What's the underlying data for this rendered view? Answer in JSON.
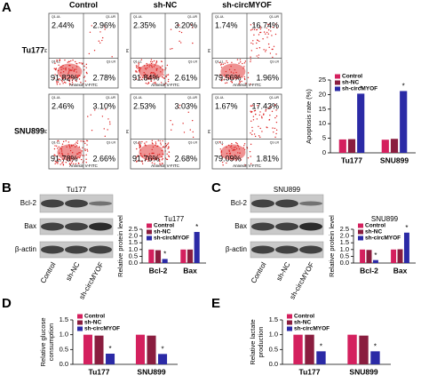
{
  "panel_labels": [
    "A",
    "B",
    "C",
    "D",
    "E"
  ],
  "flow": {
    "columns": [
      "Control",
      "sh-NC",
      "sh-circMYOF"
    ],
    "x_label": "Annexin V-FITC",
    "y_label": "PI",
    "quadrant_labels": [
      "Q1-UL",
      "Q1-UR",
      "Q1-LL",
      "Q1-LR"
    ],
    "rows": [
      {
        "name": "Tu177",
        "plots": [
          {
            "ul": "2.44%",
            "ur": "2.96%",
            "ll": "91.82%",
            "lr": "2.78%"
          },
          {
            "ul": "2.35%",
            "ur": "3.20%",
            "ll": "91.84%",
            "lr": "2.61%"
          },
          {
            "ul": "1.74%",
            "ur": "16.74%",
            "ll": "79.56%",
            "lr": "1.96%"
          }
        ]
      },
      {
        "name": "SNU899",
        "plots": [
          {
            "ul": "2.46%",
            "ur": "3.10%",
            "ll": "91.78%",
            "lr": "2.66%"
          },
          {
            "ul": "2.53%",
            "ur": "3.03%",
            "ll": "91.76%",
            "lr": "2.68%"
          },
          {
            "ul": "1.67%",
            "ur": "17.43%",
            "ll": "79.09%",
            "lr": "1.81%"
          }
        ]
      }
    ]
  },
  "blots": [
    {
      "title": "Tu177",
      "proteins": [
        "Bcl-2",
        "Bax",
        "β-actin"
      ],
      "lanes": [
        "Control",
        "sh-NC",
        "sh-circMYOF"
      ]
    },
    {
      "title": "SNU899",
      "proteins": [
        "Bcl-2",
        "Bax",
        "β-actin"
      ],
      "lanes": [
        "Control",
        "sh-NC",
        "sh-circMYOF"
      ]
    }
  ],
  "chart_data": [
    {
      "type": "bar",
      "y_label": "Apoptosis rate (%)",
      "categories": [
        "Tu177",
        "SNU899"
      ],
      "series": [
        {
          "name": "Control",
          "color": "#d4205e",
          "values": [
            4.6,
            4.5
          ]
        },
        {
          "name": "sh-NC",
          "color": "#8a1d3f",
          "values": [
            4.7,
            4.8
          ]
        },
        {
          "name": "sh-circMYOF",
          "color": "#2b2aa6",
          "values": [
            20.3,
            21.2
          ]
        }
      ],
      "ylim": [
        0,
        25
      ],
      "yticks": [
        0,
        5,
        10,
        15,
        20,
        25
      ],
      "significance": [
        "*",
        "*"
      ],
      "legend": "upper-left"
    },
    {
      "type": "bar",
      "title": "Tu177",
      "y_label": "Relative protein level",
      "categories": [
        "Bcl-2",
        "Bax"
      ],
      "series": [
        {
          "name": "Control",
          "color": "#d4205e",
          "values": [
            1.0,
            1.0
          ]
        },
        {
          "name": "sh-NC",
          "color": "#8a1d3f",
          "values": [
            0.95,
            1.0
          ]
        },
        {
          "name": "sh-circMYOF",
          "color": "#2b2aa6",
          "values": [
            0.3,
            2.3
          ]
        }
      ],
      "ylim": [
        0,
        2.5
      ],
      "yticks": [
        {
          "value": 0,
          "label": "0.0"
        },
        0.5,
        {
          "value": 1,
          "label": "1.0"
        },
        1.5,
        {
          "value": 2,
          "label": "2.0"
        },
        2.5
      ],
      "significance": [
        "*",
        "*"
      ],
      "legend": "upper-left"
    },
    {
      "type": "bar",
      "title": "SNU899",
      "y_label": "Relative protein level",
      "categories": [
        "Bcl-2",
        "Bax"
      ],
      "series": [
        {
          "name": "Control",
          "color": "#d4205e",
          "values": [
            1.0,
            1.0
          ]
        },
        {
          "name": "sh-NC",
          "color": "#8a1d3f",
          "values": [
            0.97,
            1.02
          ]
        },
        {
          "name": "sh-circMYOF",
          "color": "#2b2aa6",
          "values": [
            0.22,
            2.25
          ]
        }
      ],
      "ylim": [
        0,
        2.5
      ],
      "yticks": [
        {
          "value": 0,
          "label": "0.0"
        },
        0.5,
        {
          "value": 1,
          "label": "1.0"
        },
        1.5,
        {
          "value": 2,
          "label": "2.0"
        },
        2.5
      ],
      "significance": [
        "*",
        "*"
      ],
      "legend": "upper-left"
    },
    {
      "type": "bar",
      "y_label": [
        "Relative glucose",
        "consumption"
      ],
      "categories": [
        "Tu177",
        "SNU899"
      ],
      "series": [
        {
          "name": "Control",
          "color": "#d4205e",
          "values": [
            1.0,
            1.0
          ]
        },
        {
          "name": "sh-NC",
          "color": "#8a1d3f",
          "values": [
            0.97,
            0.97
          ]
        },
        {
          "name": "sh-circMYOF",
          "color": "#2b2aa6",
          "values": [
            0.36,
            0.35
          ]
        }
      ],
      "ylim": [
        0,
        1.5
      ],
      "yticks": [
        {
          "value": 0,
          "label": "0.0"
        },
        0.5,
        {
          "value": 1,
          "label": "1.0"
        },
        1.5
      ],
      "significance": [
        "*",
        "*"
      ],
      "legend": "upper-left"
    },
    {
      "type": "bar",
      "y_label": [
        "Relative lactate",
        "production"
      ],
      "categories": [
        "Tu177",
        "SNU899"
      ],
      "series": [
        {
          "name": "Control",
          "color": "#d4205e",
          "values": [
            1.0,
            1.0
          ]
        },
        {
          "name": "sh-NC",
          "color": "#8a1d3f",
          "values": [
            1.0,
            0.97
          ]
        },
        {
          "name": "sh-circMYOF",
          "color": "#2b2aa6",
          "values": [
            0.44,
            0.44
          ]
        }
      ],
      "ylim": [
        0,
        1.5
      ],
      "yticks": [
        {
          "value": 0,
          "label": "0.0"
        },
        0.5,
        {
          "value": 1,
          "label": "1.0"
        },
        1.5
      ],
      "significance": [
        "*",
        "*"
      ],
      "legend": "upper-left"
    }
  ]
}
